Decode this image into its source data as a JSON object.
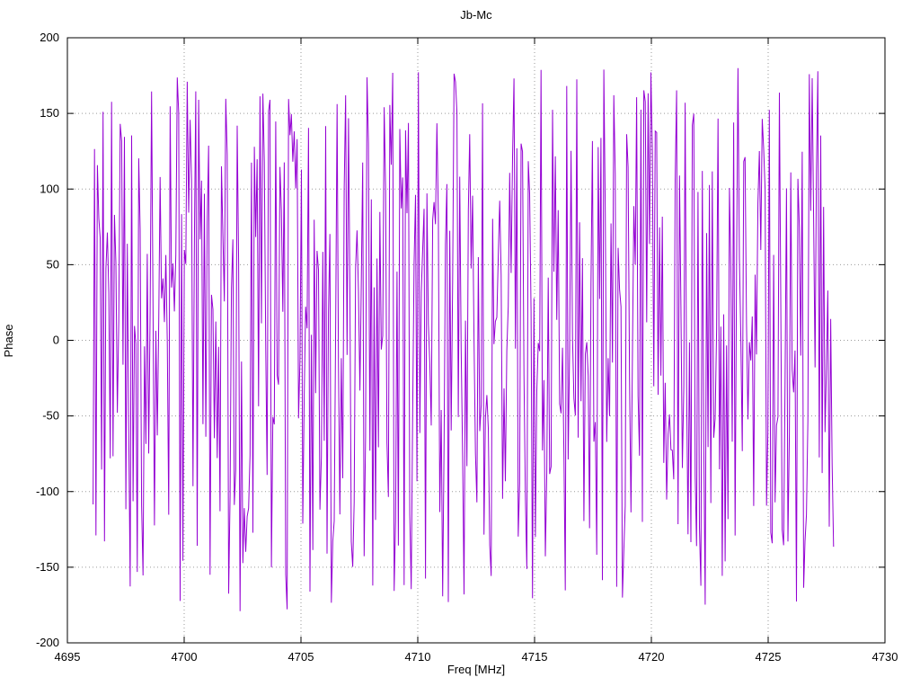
{
  "page": {
    "background": "#ffffff"
  },
  "chart_data": {
    "type": "line",
    "title": "Jb-Mc",
    "xlabel": "Freq [MHz]",
    "ylabel": "Phase",
    "xlim": [
      4695,
      4730
    ],
    "ylim": [
      -200,
      200
    ],
    "xticks": [
      4695,
      4700,
      4705,
      4710,
      4715,
      4720,
      4725,
      4730
    ],
    "yticks": [
      -200,
      -150,
      -100,
      -50,
      0,
      50,
      100,
      150,
      200
    ],
    "grid": true,
    "grid_style": "dotted",
    "grid_color": "#9a9a9a",
    "border_color": "#000000",
    "legend": "none",
    "line_color": "#9400d3",
    "line_width": 1,
    "series": [
      {
        "name": "phase",
        "x_start": 4696.1,
        "x_end": 4727.8,
        "n_points": 520,
        "y_distribution": "uniform",
        "y_min": -180,
        "y_max": 180,
        "seed": 9
      }
    ]
  }
}
